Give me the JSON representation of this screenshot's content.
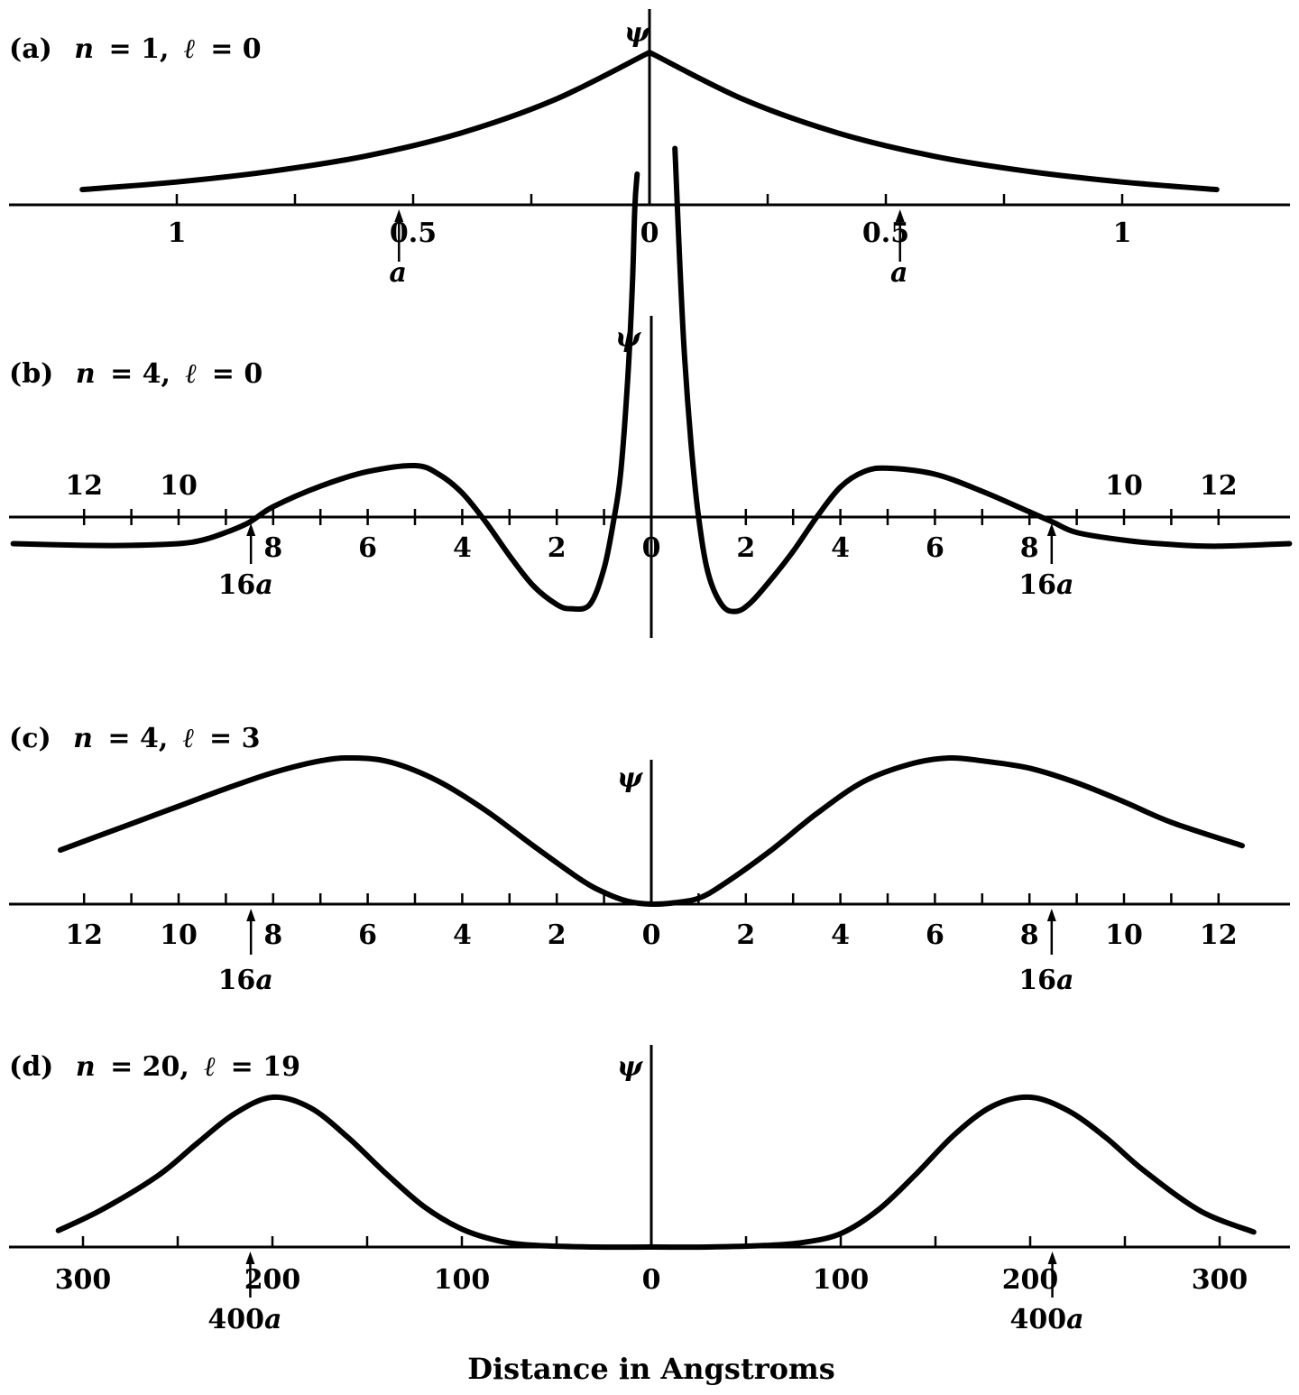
{
  "chart_data": [
    {
      "type": "line",
      "title": "(a)  n = 1, ℓ = 0",
      "title_parts": {
        "label": "(a)",
        "n_sym": "n",
        "n_val": "= 1,",
        "l_sym": "ℓ",
        "l_val": "= 0"
      },
      "ylabel": "ψ",
      "xlim": [
        -1.3,
        1.3
      ],
      "tick_values": [
        -1,
        -0.75,
        -0.5,
        -0.25,
        0,
        0.25,
        0.5,
        0.75,
        1
      ],
      "tick_labels": [
        {
          "value": -1,
          "text": "1"
        },
        {
          "value": -0.5,
          "text": "0.5"
        },
        {
          "value": 0,
          "text": "0"
        },
        {
          "value": 0.5,
          "text": "0.5"
        },
        {
          "value": 1,
          "text": "1"
        }
      ],
      "markers": [
        {
          "value": -0.53,
          "text": "a"
        },
        {
          "value": 0.53,
          "text": "a"
        }
      ],
      "series": [
        {
          "x": [
            -1.2,
            -1.0,
            -0.8,
            -0.6,
            -0.4,
            -0.2,
            0,
            0.2,
            0.4,
            0.6,
            0.8,
            1.0,
            1.2
          ],
          "y": [
            0.1,
            0.15,
            0.22,
            0.32,
            0.47,
            0.69,
            1.0,
            0.69,
            0.47,
            0.32,
            0.22,
            0.15,
            0.1
          ]
        }
      ]
    },
    {
      "type": "line",
      "title": "(b)  n = 4, ℓ = 0",
      "title_parts": {
        "label": "(b)",
        "n_sym": "n",
        "n_val": "= 4,",
        "l_sym": "ℓ",
        "l_val": "= 0"
      },
      "ylabel": "ψ",
      "xlim": [
        -13.5,
        13.5
      ],
      "tick_values": [
        -12,
        -11,
        -10,
        -9,
        -8,
        -7,
        -6,
        -5,
        -4,
        -3,
        -2,
        -1,
        0,
        1,
        2,
        3,
        4,
        5,
        6,
        7,
        8,
        9,
        10,
        11,
        12
      ],
      "tick_labels_above": [
        {
          "value": -12,
          "text": "12"
        },
        {
          "value": -10,
          "text": "10"
        },
        {
          "value": 10,
          "text": "10"
        },
        {
          "value": 12,
          "text": "12"
        }
      ],
      "tick_labels_below": [
        {
          "value": -8,
          "text": "8"
        },
        {
          "value": -6,
          "text": "6"
        },
        {
          "value": -4,
          "text": "4"
        },
        {
          "value": -2,
          "text": "2"
        },
        {
          "value": 0,
          "text": "0"
        },
        {
          "value": 2,
          "text": "2"
        },
        {
          "value": 4,
          "text": "4"
        },
        {
          "value": 6,
          "text": "6"
        },
        {
          "value": 8,
          "text": "8"
        }
      ],
      "markers": [
        {
          "value": -8.47,
          "text": "16a"
        },
        {
          "value": 8.47,
          "text": "16a"
        }
      ],
      "series": [
        {
          "x": [
            -13.5,
            -12,
            -11,
            -10,
            -9.5,
            -9,
            -8.5,
            -8,
            -7,
            -6,
            -5,
            -4.5,
            -4,
            -3.5,
            -3,
            -2.5,
            -2,
            -1.7,
            -1.3,
            -1,
            -0.8,
            -0.65,
            -0.5,
            -0.4,
            -0.35,
            -0.3
          ],
          "y": [
            -0.31,
            -0.33,
            -0.33,
            -0.31,
            -0.27,
            -0.18,
            -0.06,
            0.12,
            0.36,
            0.53,
            0.6,
            0.5,
            0.28,
            -0.06,
            -0.45,
            -0.8,
            -1.02,
            -1.07,
            -1.02,
            -0.6,
            -0.05,
            0.5,
            1.6,
            2.7,
            3.6,
            4.0
          ]
        },
        {
          "x": [
            0.5,
            0.6,
            0.7,
            0.85,
            1.0,
            1.2,
            1.5,
            1.8,
            2.1,
            2.5,
            3,
            3.5,
            4,
            4.5,
            5,
            6,
            7,
            8,
            8.5,
            9,
            10,
            11,
            12,
            13.5
          ],
          "y": [
            4.3,
            3.0,
            1.9,
            0.8,
            0.0,
            -0.65,
            -1.03,
            -1.1,
            -1.0,
            -0.75,
            -0.4,
            0.0,
            0.35,
            0.53,
            0.57,
            0.5,
            0.3,
            0.06,
            -0.06,
            -0.18,
            -0.27,
            -0.32,
            -0.34,
            -0.31
          ]
        }
      ]
    },
    {
      "type": "line",
      "title": "(c)  n = 4, ℓ = 3",
      "title_parts": {
        "label": "(c)",
        "n_sym": "n",
        "n_val": "= 4,",
        "l_sym": "ℓ",
        "l_val": "= 3"
      },
      "ylabel": "ψ",
      "xlim": [
        -13.5,
        13.5
      ],
      "tick_values": [
        -12,
        -11,
        -10,
        -9,
        -8,
        -7,
        -6,
        -5,
        -4,
        -3,
        -2,
        -1,
        0,
        1,
        2,
        3,
        4,
        5,
        6,
        7,
        8,
        9,
        10,
        11,
        12
      ],
      "tick_labels": [
        {
          "value": -12,
          "text": "12"
        },
        {
          "value": -10,
          "text": "10"
        },
        {
          "value": -8,
          "text": "8"
        },
        {
          "value": -6,
          "text": "6"
        },
        {
          "value": -4,
          "text": "4"
        },
        {
          "value": -2,
          "text": "2"
        },
        {
          "value": 0,
          "text": "0"
        },
        {
          "value": 2,
          "text": "2"
        },
        {
          "value": 4,
          "text": "4"
        },
        {
          "value": 6,
          "text": "6"
        },
        {
          "value": 8,
          "text": "8"
        },
        {
          "value": 10,
          "text": "10"
        },
        {
          "value": 12,
          "text": "12"
        }
      ],
      "markers": [
        {
          "value": -8.47,
          "text": "16a"
        },
        {
          "value": 8.47,
          "text": "16a"
        }
      ],
      "series": [
        {
          "x": [
            -12.5,
            -11,
            -10,
            -9,
            -8,
            -7,
            -6.3,
            -5.5,
            -4.5,
            -3.5,
            -2.5,
            -1.5,
            -1,
            -0.5,
            0,
            0.5,
            1,
            1.5,
            2.5,
            3.5,
            4.5,
            5.5,
            6.3,
            7,
            8,
            9,
            10,
            11,
            12.5
          ],
          "y": [
            0.37,
            0.55,
            0.67,
            0.79,
            0.9,
            0.98,
            1.0,
            0.97,
            0.84,
            0.64,
            0.4,
            0.17,
            0.08,
            0.02,
            0.0,
            0.01,
            0.04,
            0.13,
            0.36,
            0.62,
            0.84,
            0.96,
            1.0,
            0.98,
            0.93,
            0.83,
            0.7,
            0.56,
            0.4
          ]
        }
      ]
    },
    {
      "type": "line",
      "title": "(d)  n = 20, ℓ = 19",
      "title_parts": {
        "label": "(d)",
        "n_sym": "n",
        "n_val": "= 20,",
        "l_sym": "ℓ",
        "l_val": "= 19"
      },
      "ylabel": "ψ",
      "xlabel": "Distance in Angstroms",
      "xlim": [
        -340,
        340
      ],
      "tick_values": [
        -300,
        -250,
        -200,
        -150,
        -100,
        -50,
        0,
        50,
        100,
        150,
        200,
        250,
        300
      ],
      "tick_labels": [
        {
          "value": -300,
          "text": "300"
        },
        {
          "value": -200,
          "text": "200"
        },
        {
          "value": -100,
          "text": "100"
        },
        {
          "value": 0,
          "text": "0"
        },
        {
          "value": 100,
          "text": "100"
        },
        {
          "value": 200,
          "text": "200"
        },
        {
          "value": 300,
          "text": "300"
        }
      ],
      "markers": [
        {
          "value": -211.7,
          "text": "400a"
        },
        {
          "value": 211.7,
          "text": "400a"
        }
      ],
      "series": [
        {
          "x": [
            -313,
            -290,
            -260,
            -240,
            -220,
            -200,
            -180,
            -160,
            -140,
            -120,
            -100,
            -80,
            -60,
            -30,
            0,
            30,
            60,
            80,
            100,
            120,
            140,
            160,
            180,
            200,
            220,
            240,
            260,
            290,
            318
          ],
          "y": [
            0.11,
            0.25,
            0.48,
            0.69,
            0.89,
            1.0,
            0.93,
            0.73,
            0.49,
            0.27,
            0.12,
            0.04,
            0.01,
            0.0,
            0.0,
            0.0,
            0.01,
            0.03,
            0.09,
            0.25,
            0.49,
            0.75,
            0.94,
            1.0,
            0.91,
            0.73,
            0.51,
            0.24,
            0.1
          ]
        }
      ]
    }
  ]
}
